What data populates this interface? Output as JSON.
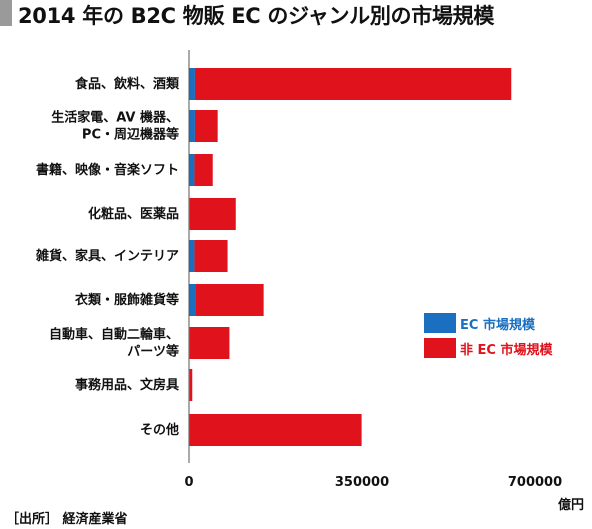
{
  "title": "2014 年の B2C 物販 EC のジャンル別の市場規模",
  "unit_label": "億円",
  "source": "［出所］ 経済産業省",
  "colors": {
    "ec": "#1a6fc0",
    "non_ec": "#e0121c",
    "axis": "#555555",
    "title_bar": "#9a9a9a"
  },
  "chart_data": {
    "type": "bar",
    "orientation": "horizontal",
    "stacked": true,
    "title": "2014 年の B2C 物販 EC のジャンル別の市場規模",
    "categories": [
      [
        "食品、飲料、酒類"
      ],
      [
        "生活家電、AV 機器、",
        "PC・周辺機器等"
      ],
      [
        "書籍、映像・音楽ソフト"
      ],
      [
        "化粧品、医薬品"
      ],
      [
        "雑貨、家具、インテリア"
      ],
      [
        "衣類・服飾雑貨等"
      ],
      [
        "自動車、自動二輪車、",
        "パーツ等"
      ],
      [
        "事務用品、文房具"
      ],
      [
        "その他"
      ]
    ],
    "series": [
      {
        "name": "EC 市場規模",
        "color": "#1a6fc0",
        "values": [
          12000,
          12000,
          11000,
          1600,
          11000,
          13000,
          1800,
          1600,
          1200
        ]
      },
      {
        "name": "非 EC 市場規模",
        "color": "#e0121c",
        "values": [
          640000,
          46000,
          37000,
          93000,
          67000,
          138000,
          80000,
          5000,
          348000
        ]
      }
    ],
    "xlim": [
      0,
      700000
    ],
    "xticks": [
      0,
      350000,
      700000
    ],
    "xlabel": "億円",
    "legend_position": "right"
  }
}
